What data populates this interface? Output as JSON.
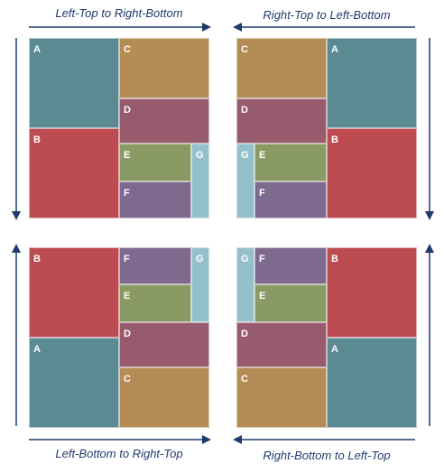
{
  "captions": {
    "top_left": "Left-Top to Right-Bottom",
    "top_right": "Right-Top to Left-Bottom",
    "bottom_left": "Left-Bottom to Right-Top",
    "bottom_right": "Right-Bottom to Left-Top"
  },
  "labels": {
    "A": "A",
    "B": "B",
    "C": "C",
    "D": "D",
    "E": "E",
    "F": "F",
    "G": "G"
  },
  "colors": {
    "A": "#5b8a93",
    "B": "#bd4b52",
    "C": "#b28b55",
    "D": "#975b6d",
    "E": "#8a9a64",
    "F": "#7e6a8e",
    "G": "#94c0cb",
    "arrow": "#1f3b6e"
  }
}
